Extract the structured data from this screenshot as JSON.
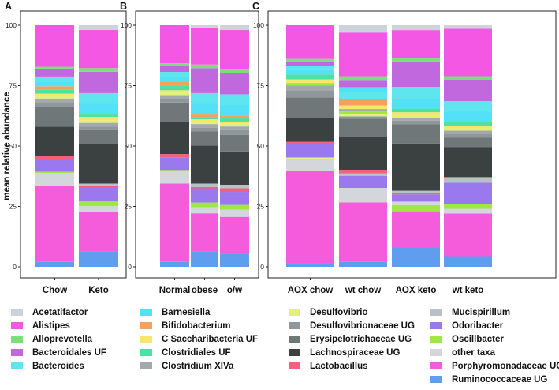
{
  "chart_data": {
    "type": "bar",
    "stacked": true,
    "ylabel": "mean relative abundance",
    "ylim": [
      0,
      100
    ],
    "yticks": [
      "0",
      "25",
      "50",
      "75",
      "100"
    ],
    "yticks_panel_c": [
      "0",
      "25",
      "50",
      "75",
      "100"
    ],
    "panels": [
      {
        "label": "A",
        "categories": [
          "Chow",
          "Keto"
        ],
        "bars": [
          [
            [
              "Ruminococcaceae UG",
              2
            ],
            [
              "Porphyromonadaceae UG",
              31
            ],
            [
              "other taxa",
              5.5
            ],
            [
              "Oscillbacter",
              0.5
            ],
            [
              "Odoribacter",
              5
            ],
            [
              "Lactobacillus",
              1.5
            ],
            [
              "Lachnospiraceae UG",
              12
            ],
            [
              "Erysipelotrichaceae UG",
              8
            ],
            [
              "Desulfovibrionaceae UG",
              2
            ],
            [
              "Clostridium XIVa",
              1.5
            ],
            [
              "Desulfovibrio",
              1
            ],
            [
              "C Saccharibacteria UF",
              1
            ],
            [
              "Clostridiales UF",
              1.5
            ],
            [
              "Bifidobacterium",
              1.5
            ],
            [
              "Barnesiella",
              2
            ],
            [
              "Bacteroides",
              2
            ],
            [
              "Bacteroidales UF",
              3
            ],
            [
              "Alloprevotella",
              1
            ],
            [
              "Alistipes",
              17
            ],
            [
              "Acetatifactor",
              0
            ]
          ],
          [
            [
              "Ruminococcaceae UG",
              6.5
            ],
            [
              "Porphyromonadaceae UG",
              16.5
            ],
            [
              "other taxa",
              2.5
            ],
            [
              "Oscillbacter",
              2
            ],
            [
              "Odoribacter",
              6
            ],
            [
              "Lactobacillus",
              0.5
            ],
            [
              "Mucispirillum",
              1
            ],
            [
              "Lachnospiraceae UG",
              16.5
            ],
            [
              "Erysipelotrichaceae UG",
              6
            ],
            [
              "Desulfovibrionaceae UG",
              1.5
            ],
            [
              "Clostridium XIVa",
              1.5
            ],
            [
              "Desulfovibrio",
              1
            ],
            [
              "C Saccharibacteria UF",
              1.5
            ],
            [
              "Clostridiales UF",
              1
            ],
            [
              "Barnesiella",
              4.5
            ],
            [
              "Bacteroides",
              4.5
            ],
            [
              "Bacteroidales UF",
              9
            ],
            [
              "Alloprevotella",
              1.5
            ],
            [
              "Alistipes",
              16
            ],
            [
              "Acetatifactor",
              2
            ]
          ]
        ]
      },
      {
        "label": "B",
        "categories": [
          "Normal",
          "obese",
          "o/w"
        ],
        "bars": [
          [
            [
              "Ruminococcaceae UG",
              2
            ],
            [
              "Porphyromonadaceae UG",
              32
            ],
            [
              "other taxa",
              5
            ],
            [
              "Oscillbacter",
              0.5
            ],
            [
              "Odoribacter",
              5
            ],
            [
              "Lactobacillus",
              1.5
            ],
            [
              "Lachnospiraceae UG",
              13
            ],
            [
              "Erysipelotrichaceae UG",
              8
            ],
            [
              "Desulfovibrionaceae UG",
              1.5
            ],
            [
              "Clostridium XIVa",
              1.5
            ],
            [
              "Desulfovibrio",
              1
            ],
            [
              "C Saccharibacteria UF",
              1
            ],
            [
              "Clostridiales UF",
              2
            ],
            [
              "Bifidobacterium",
              1.5
            ],
            [
              "Barnesiella",
              2
            ],
            [
              "Bacteroides",
              2
            ],
            [
              "Bacteroidales UF",
              2.5
            ],
            [
              "Alloprevotella",
              1
            ],
            [
              "Alistipes",
              15.5
            ],
            [
              "Acetatifactor",
              0
            ]
          ],
          [
            [
              "Ruminococcaceae UG",
              6.5
            ],
            [
              "Porphyromonadaceae UG",
              16
            ],
            [
              "other taxa",
              2.5
            ],
            [
              "Oscillbacter",
              2
            ],
            [
              "Odoribacter",
              6
            ],
            [
              "Lactobacillus",
              0.5
            ],
            [
              "Mucispirillum",
              1.5
            ],
            [
              "Lachnospiraceae UG",
              16
            ],
            [
              "Erysipelotrichaceae UG",
              6
            ],
            [
              "Desulfovibrionaceae UG",
              1.5
            ],
            [
              "Clostridium XIVa",
              1.5
            ],
            [
              "Desulfovibrio",
              1
            ],
            [
              "C Saccharibacteria UF",
              1
            ],
            [
              "Clostridiales UF",
              1
            ],
            [
              "Bifidobacterium",
              1
            ],
            [
              "Barnesiella",
              4.5
            ],
            [
              "Bacteroides",
              4.5
            ],
            [
              "Bacteroidales UF",
              10.5
            ],
            [
              "Alloprevotella",
              1.5
            ],
            [
              "Alistipes",
              15.5
            ],
            [
              "Acetatifactor",
              1
            ]
          ],
          [
            [
              "Ruminococcaceae UG",
              5.5
            ],
            [
              "Porphyromonadaceae UG",
              15.5
            ],
            [
              "other taxa",
              3
            ],
            [
              "Oscillbacter",
              2
            ],
            [
              "Odoribacter",
              5.5
            ],
            [
              "Lactobacillus",
              1.5
            ],
            [
              "Mucispirillum",
              1.5
            ],
            [
              "Lachnospiraceae UG",
              14
            ],
            [
              "Erysipelotrichaceae UG",
              7
            ],
            [
              "Desulfovibrionaceae UG",
              2
            ],
            [
              "Clostridium XIVa",
              1.5
            ],
            [
              "Desulfovibrio",
              1
            ],
            [
              "C Saccharibacteria UF",
              1
            ],
            [
              "Clostridiales UF",
              1.5
            ],
            [
              "Bifidobacterium",
              1
            ],
            [
              "Barnesiella",
              4.5
            ],
            [
              "Bacteroides",
              4.5
            ],
            [
              "Bacteroidales UF",
              9
            ],
            [
              "Alloprevotella",
              1.5
            ],
            [
              "Alistipes",
              16.5
            ],
            [
              "Acetatifactor",
              2
            ]
          ]
        ]
      },
      {
        "label": "C",
        "categories": [
          "AOX chow",
          "wt chow",
          "AOX keto",
          "wt keto"
        ],
        "bars": [
          [
            [
              "Ruminococcaceae UG",
              1.5
            ],
            [
              "Porphyromonadaceae UG",
              38.5
            ],
            [
              "other taxa",
              5
            ],
            [
              "Desulfovibrio",
              0.5
            ],
            [
              "Odoribacter",
              5.5
            ],
            [
              "Lactobacillus",
              1
            ],
            [
              "Lachnospiraceae UG",
              10
            ],
            [
              "Erysipelotrichaceae UG",
              8.5
            ],
            [
              "Desulfovibrionaceae UG",
              3
            ],
            [
              "Clostridium XIVa",
              2
            ],
            [
              "Oscillbacter",
              1
            ],
            [
              "C Saccharibacteria UF",
              1.5
            ],
            [
              "Clostridiales UF",
              2
            ],
            [
              "Barnesiella",
              2
            ],
            [
              "Bacteroides",
              1.5
            ],
            [
              "Bacteroidales UF",
              2
            ],
            [
              "Alloprevotella",
              1
            ],
            [
              "Alistipes",
              14
            ],
            [
              "Acetatifactor",
              0
            ]
          ],
          [
            [
              "Ruminococcaceae UG",
              2
            ],
            [
              "Porphyromonadaceae UG",
              24.5
            ],
            [
              "other taxa",
              6
            ],
            [
              "Odoribacter",
              5
            ],
            [
              "Mucispirillum",
              1
            ],
            [
              "Lactobacillus",
              1.5
            ],
            [
              "Lachnospiraceae UG",
              13.5
            ],
            [
              "Erysipelotrichaceae UG",
              7.5
            ],
            [
              "Desulfovibrionaceae UG",
              1
            ],
            [
              "Desulfovibrio",
              1
            ],
            [
              "Oscillbacter",
              1
            ],
            [
              "Clostridium XIVa",
              1
            ],
            [
              "C Saccharibacteria UF",
              1.5
            ],
            [
              "Bifidobacterium",
              2.5
            ],
            [
              "Bacteroides",
              3
            ],
            [
              "Barnesiella",
              2
            ],
            [
              "Bacteroidales UF",
              3
            ],
            [
              "Alloprevotella",
              1.5
            ],
            [
              "Alistipes",
              18
            ],
            [
              "Acetatifactor",
              3
            ]
          ],
          [
            [
              "Ruminococcaceae UG",
              8
            ],
            [
              "Porphyromonadaceae UG",
              15
            ],
            [
              "Oscillbacter",
              2.5
            ],
            [
              "other taxa",
              1.5
            ],
            [
              "Odoribacter",
              3
            ],
            [
              "Lactobacillus",
              0.5
            ],
            [
              "Mucispirillum",
              1
            ],
            [
              "Lachnospiraceae UG",
              19.5
            ],
            [
              "Erysipelotrichaceae UG",
              8
            ],
            [
              "Desulfovibrionaceae UG",
              1.5
            ],
            [
              "Clostridium XIVa",
              1
            ],
            [
              "Desulfovibrio",
              1
            ],
            [
              "C Saccharibacteria UF",
              1.5
            ],
            [
              "Clostridiales UF",
              1.5
            ],
            [
              "Barnesiella",
              4
            ],
            [
              "Bacteroides",
              5
            ],
            [
              "Bacteroidales UF",
              10.5
            ],
            [
              "Alloprevotella",
              1.5
            ],
            [
              "Alistipes",
              11.5
            ],
            [
              "Acetatifactor",
              2
            ]
          ],
          [
            [
              "Ruminococcaceae UG",
              4.5
            ],
            [
              "Porphyromonadaceae UG",
              18
            ],
            [
              "other taxa",
              2
            ],
            [
              "Oscillbacter",
              2
            ],
            [
              "Odoribacter",
              9
            ],
            [
              "Mucispirillum",
              2
            ],
            [
              "Lactobacillus",
              0.5
            ],
            [
              "Lachnospiraceae UG",
              12.5
            ],
            [
              "Erysipelotrichaceae UG",
              4
            ],
            [
              "Desulfovibrionaceae UG",
              1.5
            ],
            [
              "Clostridium XIVa",
              1.5
            ],
            [
              "Desulfovibrio",
              1
            ],
            [
              "C Saccharibacteria UF",
              1
            ],
            [
              "Clostridiales UF",
              1.5
            ],
            [
              "Barnesiella",
              4.5
            ],
            [
              "Bacteroides",
              4.5
            ],
            [
              "Bacteroidales UF",
              9
            ],
            [
              "Alloprevotella",
              1.5
            ],
            [
              "Alistipes",
              20
            ],
            [
              "Acetatifactor",
              1.5
            ]
          ]
        ]
      }
    ],
    "legend": {
      "columns": [
        [
          "Acetatifactor",
          "Alistipes",
          "Alloprevotella",
          "Bacteroidales UF",
          "Bacteroides"
        ],
        [
          "Barnesiella",
          "Bifidobacterium",
          "C Saccharibacteria UF",
          "Clostridiales UF",
          "Clostridium XIVa"
        ],
        [
          "Desulfovibrio",
          "Desulfovibrionaceae UG",
          "Erysipelotrichaceae UG",
          "Lachnospiraceae UG",
          "Lactobacillus"
        ],
        [
          "Mucispirillum",
          "Odoribacter",
          "Oscillbacter",
          "other taxa",
          "Porphyromonadaceae UG",
          "Ruminococcaceae UG"
        ]
      ],
      "colors": {
        "Acetatifactor": "#cdd3da",
        "Alistipes": "#f457e3",
        "Alloprevotella": "#7ce07a",
        "Bacteroidales UF": "#c268de",
        "Bacteroides": "#5fe5ee",
        "Barnesiella": "#52e1f7",
        "Bifidobacterium": "#f4a15e",
        "C Saccharibacteria UF": "#f6e76a",
        "Clostridiales UF": "#4fe0a4",
        "Clostridium XIVa": "#a3aaad",
        "Desulfovibrio": "#e3f07a",
        "Desulfovibrionaceae UG": "#8f979b",
        "Erysipelotrichaceae UG": "#6f7778",
        "Lachnospiraceae UG": "#3a4140",
        "Lactobacillus": "#f0617c",
        "Mucispirillum": "#b9c1c7",
        "Odoribacter": "#9a79ee",
        "Oscillbacter": "#9fe844",
        "other taxa": "#d3d7db",
        "Porphyromonadaceae UG": "#f45cdc",
        "Ruminococcaceae UG": "#5f9dee"
      }
    }
  }
}
